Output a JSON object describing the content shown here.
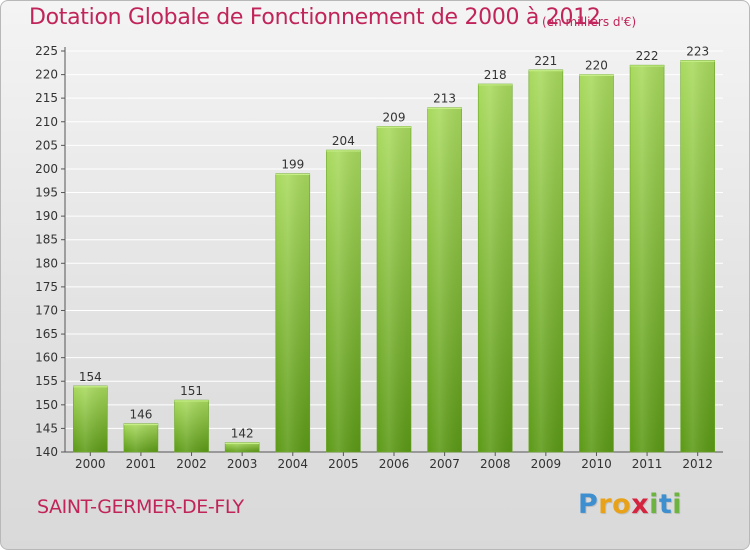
{
  "title": "Dotation Globale de Fonctionnement de 2000 à 2012",
  "subtitle": "(en milliers d'€)",
  "commune": "SAINT-GERMER-DE-FLY",
  "logo": {
    "text": "Proxiti",
    "letters": [
      {
        "char": "P",
        "color": "#3d8fd0"
      },
      {
        "char": "r",
        "color": "#e8a21a"
      },
      {
        "char": "o",
        "color": "#e8a21a"
      },
      {
        "char": "x",
        "color": "#d4243f"
      },
      {
        "char": "i",
        "color": "#6db33f"
      },
      {
        "char": "t",
        "color": "#3d8fd0"
      },
      {
        "char": "i",
        "color": "#6db33f"
      }
    ]
  },
  "colors": {
    "accent": "#c0245a",
    "bar_light": "#a6d75a",
    "bar_dark": "#5f9e1a",
    "grid": "#ffffff",
    "tick_text": "#333333"
  },
  "chart_data": {
    "type": "bar",
    "categories": [
      "2000",
      "2001",
      "2002",
      "2003",
      "2004",
      "2005",
      "2006",
      "2007",
      "2008",
      "2009",
      "2010",
      "2011",
      "2012"
    ],
    "values": [
      154,
      146,
      151,
      142,
      199,
      204,
      209,
      213,
      218,
      221,
      220,
      222,
      223
    ],
    "data_labels": [
      "154",
      "146",
      "151",
      "142",
      "199",
      "204",
      "209",
      "213",
      "218",
      "221",
      "220",
      "222",
      "223"
    ],
    "ylim": [
      140,
      225
    ],
    "ytick_labels": [
      "140",
      "145",
      "150",
      "155",
      "160",
      "165",
      "170",
      "175",
      "180",
      "185",
      "190",
      "195",
      "200",
      "205",
      "210",
      "215",
      "220",
      "225"
    ],
    "grid": true
  }
}
